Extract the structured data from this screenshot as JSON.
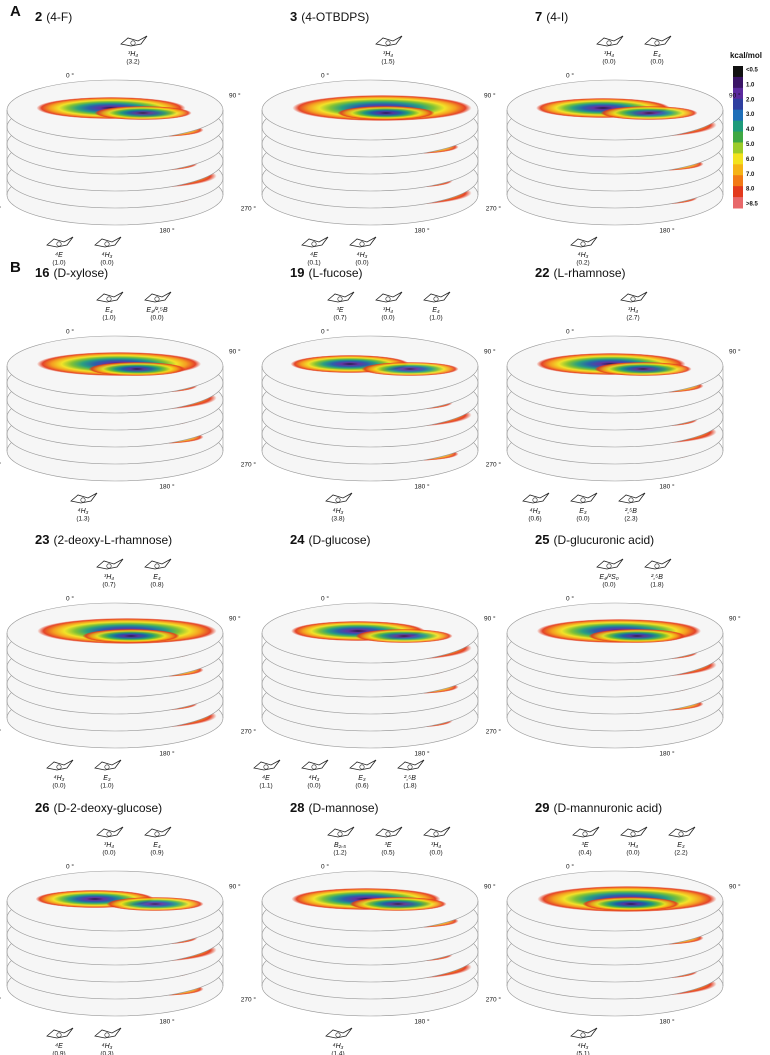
{
  "angle_labels": [
    "0 °",
    "90 °",
    "180 °",
    "270 °"
  ],
  "colorbar": {
    "title": "kcal/mol",
    "labels": [
      "<0.5",
      "1.0",
      "2.0",
      "3.0",
      "4.0",
      "5.0",
      "6.0",
      "7.0",
      "8.0",
      ">8.5"
    ]
  },
  "sections": [
    {
      "label": "A",
      "plots": [
        {
          "number": "2",
          "name": "(4-F)",
          "top_conformers": [
            {
              "name": "³H₄",
              "energy": "(3.2)"
            }
          ],
          "bottom_conformers": [
            {
              "name": "⁴E",
              "energy": "(1.0)"
            },
            {
              "name": "⁴H₃",
              "energy": "(0.0)"
            }
          ]
        },
        {
          "number": "3",
          "name": "(4-OTBDPS)",
          "top_conformers": [
            {
              "name": "³H₄",
              "energy": "(1.5)"
            }
          ],
          "bottom_conformers": [
            {
              "name": "⁴E",
              "energy": "(0.1)"
            },
            {
              "name": "⁴H₃",
              "energy": "(0.0)"
            }
          ]
        },
        {
          "number": "7",
          "name": "(4-I)",
          "top_conformers": [
            {
              "name": "³H₄",
              "energy": "(0.0)"
            },
            {
              "name": "E₄",
              "energy": "(0.0)"
            }
          ],
          "bottom_conformers": [
            {
              "name": "⁴H₃",
              "energy": "(0.2)"
            }
          ]
        }
      ]
    },
    {
      "label": "B",
      "plots": [
        {
          "number": "16",
          "name": "(D-xylose)",
          "top_conformers": [
            {
              "name": "E₄",
              "energy": "(1.0)"
            },
            {
              "name": "E₄/²,⁵B",
              "energy": "(0.0)"
            }
          ],
          "bottom_conformers": [
            {
              "name": "⁴H₃",
              "energy": "(1.3)"
            }
          ]
        },
        {
          "number": "19",
          "name": "(L-fucose)",
          "top_conformers": [
            {
              "name": "³E",
              "energy": "(0.7)"
            },
            {
              "name": "³H₄",
              "energy": "(0.0)"
            },
            {
              "name": "E₄",
              "energy": "(1.0)"
            }
          ],
          "bottom_conformers": [
            {
              "name": "⁴H₃",
              "energy": "(3.8)"
            }
          ]
        },
        {
          "number": "22",
          "name": "(L-rhamnose)",
          "top_conformers": [
            {
              "name": "³H₄",
              "energy": "(2.7)"
            }
          ],
          "bottom_conformers": [
            {
              "name": "⁴H₃",
              "energy": "(0.6)"
            },
            {
              "name": "E₃",
              "energy": "(0.0)"
            },
            {
              "name": "²,⁵B",
              "energy": "(2.3)"
            }
          ]
        },
        {
          "number": "23",
          "name": "(2-deoxy-L-rhamnose)",
          "top_conformers": [
            {
              "name": "³H₄",
              "energy": "(0.7)"
            },
            {
              "name": "E₄",
              "energy": "(0.8)"
            }
          ],
          "bottom_conformers": [
            {
              "name": "⁴H₃",
              "energy": "(0.0)"
            },
            {
              "name": "E₃",
              "energy": "(1.0)"
            }
          ]
        },
        {
          "number": "24",
          "name": "(D-glucose)",
          "top_conformers": [],
          "bottom_conformers": [
            {
              "name": "⁴E",
              "energy": "(1.1)"
            },
            {
              "name": "⁴H₃",
              "energy": "(0.0)"
            },
            {
              "name": "E₃",
              "energy": "(0.6)"
            },
            {
              "name": "²,⁵B",
              "energy": "(1.8)"
            }
          ]
        },
        {
          "number": "25",
          "name": "(D-glucuronic acid)",
          "top_conformers": [
            {
              "name": "E₄/²S₀",
              "energy": "(0.0)"
            },
            {
              "name": "²,⁵B",
              "energy": "(1.8)"
            }
          ],
          "bottom_conformers": []
        },
        {
          "number": "26",
          "name": "(D-2-deoxy-glucose)",
          "top_conformers": [
            {
              "name": "³H₄",
              "energy": "(0.0)"
            },
            {
              "name": "E₄",
              "energy": "(0.9)"
            }
          ],
          "bottom_conformers": [
            {
              "name": "⁴E",
              "energy": "(0.9)"
            },
            {
              "name": "⁴H₃",
              "energy": "(0.3)"
            }
          ]
        },
        {
          "number": "28",
          "name": "(D-mannose)",
          "top_conformers": [
            {
              "name": "B₂,₅",
              "energy": "(1.2)"
            },
            {
              "name": "³E",
              "energy": "(0.5)"
            },
            {
              "name": "³H₄",
              "energy": "(0.0)"
            }
          ],
          "bottom_conformers": [
            {
              "name": "⁴H₃",
              "energy": "(1.4)"
            }
          ]
        },
        {
          "number": "29",
          "name": "(D-mannuronic acid)",
          "top_conformers": [
            {
              "name": "³E",
              "energy": "(0.4)"
            },
            {
              "name": "³H₄",
              "energy": "(0.0)"
            },
            {
              "name": "E₃",
              "energy": "(2.2)"
            }
          ],
          "bottom_conformers": [
            {
              "name": "⁴H₃",
              "energy": "(5.1)"
            }
          ]
        }
      ]
    }
  ]
}
